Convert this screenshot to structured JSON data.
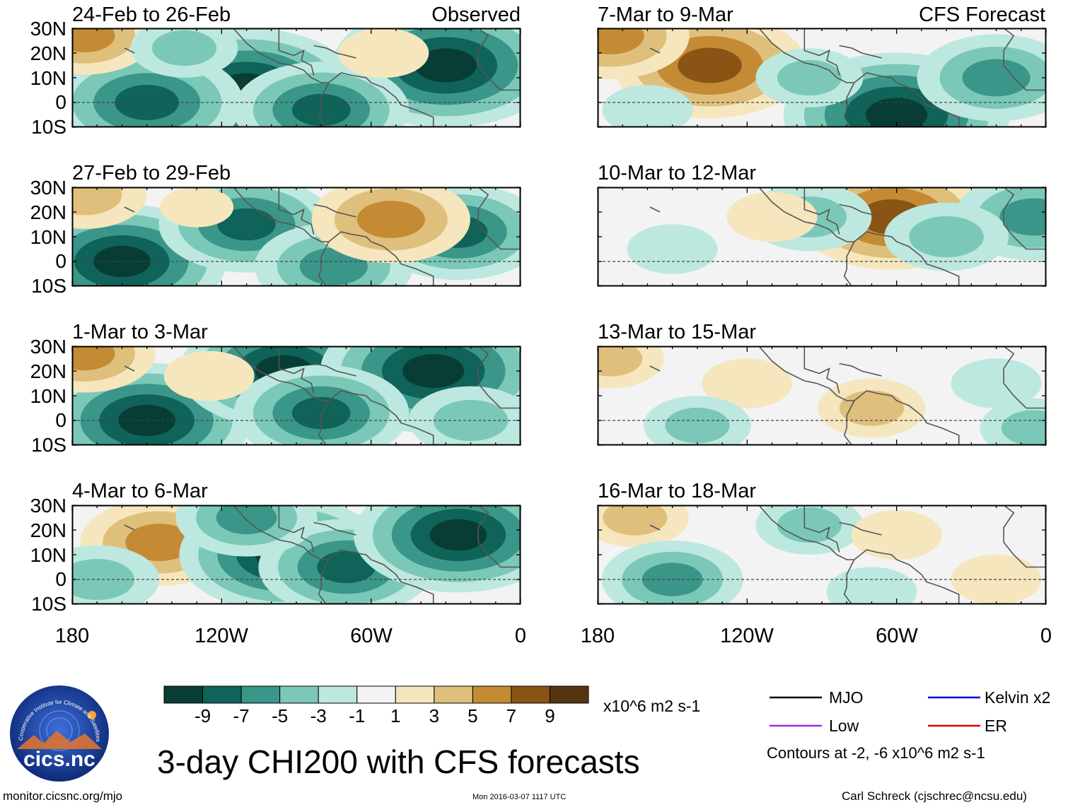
{
  "title": "3-day CHI200 with CFS forecasts",
  "footer": {
    "website": "monitor.cicsnc.org/mjo",
    "timestamp": "Mon 2016-03-07 1117 UTC",
    "author": "Carl Schreck (cjschrec@ncsu.edu)"
  },
  "logo": {
    "text": "cicsnc",
    "ring_text": "Cooperative Institute for Climate and Satellites"
  },
  "axes": {
    "lat_ticks": [
      "30N",
      "20N",
      "10N",
      "0",
      "10S"
    ],
    "lon_ticks": [
      "180",
      "120W",
      "60W",
      "0"
    ]
  },
  "colorbar": {
    "units": "x10^6 m2 s-1",
    "tick_labels": [
      "-9",
      "-7",
      "-5",
      "-3",
      "-1",
      "1",
      "3",
      "5",
      "7",
      "9"
    ],
    "colors": [
      "#083d35",
      "#0f6358",
      "#3a9688",
      "#7bc8b8",
      "#bde8df",
      "#f3f3f3",
      "#f6e6bd",
      "#dfbf7c",
      "#c48a34",
      "#8a5414",
      "#553510"
    ]
  },
  "legend": {
    "items": [
      {
        "label": "MJO",
        "color": "#000000"
      },
      {
        "label": "Kelvin x2",
        "color": "#0000ee"
      },
      {
        "label": "Low",
        "color": "#9a2eee"
      },
      {
        "label": "ER",
        "color": "#dd0000"
      }
    ],
    "note": "Contours at -2, -6 x10^6 m2 s-1"
  },
  "observed_panels": [
    {
      "label": "24-Feb to 26-Feb",
      "tag": "Observed"
    },
    {
      "label": "27-Feb to 29-Feb"
    },
    {
      "label": "1-Mar to 3-Mar"
    },
    {
      "label": "4-Mar to 6-Mar"
    }
  ],
  "forecast_panels": [
    {
      "label": "7-Mar to 9-Mar",
      "tag": "CFS Forecast"
    },
    {
      "label": "10-Mar to 12-Mar"
    },
    {
      "label": "13-Mar to 15-Mar"
    },
    {
      "label": "16-Mar to 18-Mar"
    }
  ],
  "chart_data": {
    "type": "heatmap",
    "variable": "3-day CHI200 anomaly",
    "units": "x10^6 m2 s-1",
    "lon_range": [
      -180,
      0
    ],
    "lat_range": [
      -10,
      30
    ],
    "levels": [
      -9,
      -7,
      -5,
      -3,
      -1,
      1,
      3,
      5,
      7,
      9
    ],
    "panels": [
      {
        "period": "24-Feb to 26-Feb",
        "source": "Observed",
        "blobs": [
          {
            "lon": -110,
            "lat": 5,
            "value": -10
          },
          {
            "lon": -150,
            "lat": 0,
            "value": -8
          },
          {
            "lon": -30,
            "lat": 15,
            "value": -10
          },
          {
            "lon": -80,
            "lat": -3,
            "value": -7
          },
          {
            "lon": -175,
            "lat": 27,
            "value": 5
          },
          {
            "lon": -55,
            "lat": 20,
            "value": 2
          },
          {
            "lon": -135,
            "lat": 22,
            "value": -3
          }
        ]
      },
      {
        "period": "27-Feb to 29-Feb",
        "source": "Observed",
        "blobs": [
          {
            "lon": -160,
            "lat": 0,
            "value": -9
          },
          {
            "lon": -110,
            "lat": 15,
            "value": -7
          },
          {
            "lon": -75,
            "lat": -2,
            "value": -6
          },
          {
            "lon": -25,
            "lat": 12,
            "value": -7
          },
          {
            "lon": -52,
            "lat": 17,
            "value": 6
          },
          {
            "lon": -175,
            "lat": 27,
            "value": 4
          },
          {
            "lon": -130,
            "lat": 22,
            "value": 1
          }
        ]
      },
      {
        "period": "1-Mar to 3-Mar",
        "source": "Observed",
        "blobs": [
          {
            "lon": -150,
            "lat": 0,
            "value": -9
          },
          {
            "lon": -95,
            "lat": 20,
            "value": -9
          },
          {
            "lon": -35,
            "lat": 20,
            "value": -10
          },
          {
            "lon": -80,
            "lat": 3,
            "value": -7
          },
          {
            "lon": -175,
            "lat": 27,
            "value": 5
          },
          {
            "lon": -125,
            "lat": 18,
            "value": 2
          },
          {
            "lon": -20,
            "lat": 0,
            "value": -4
          }
        ]
      },
      {
        "period": "4-Mar to 6-Mar",
        "source": "Observed",
        "blobs": [
          {
            "lon": -145,
            "lat": 15,
            "value": 6
          },
          {
            "lon": -95,
            "lat": 10,
            "value": -9
          },
          {
            "lon": -70,
            "lat": 5,
            "value": -7
          },
          {
            "lon": -25,
            "lat": 18,
            "value": -9
          },
          {
            "lon": -170,
            "lat": 0,
            "value": -4
          },
          {
            "lon": -110,
            "lat": 25,
            "value": -5
          }
        ]
      },
      {
        "period": "7-Mar to 9-Mar",
        "source": "CFS Forecast",
        "blobs": [
          {
            "lon": -135,
            "lat": 15,
            "value": 8
          },
          {
            "lon": -175,
            "lat": 27,
            "value": 6
          },
          {
            "lon": -60,
            "lat": -5,
            "value": -10
          },
          {
            "lon": -20,
            "lat": 10,
            "value": -6
          },
          {
            "lon": -95,
            "lat": 10,
            "value": -3
          },
          {
            "lon": -160,
            "lat": -3,
            "value": -2
          }
        ]
      },
      {
        "period": "10-Mar to 12-Mar",
        "source": "CFS Forecast",
        "blobs": [
          {
            "lon": -62,
            "lat": 18,
            "value": 8
          },
          {
            "lon": -5,
            "lat": 18,
            "value": -6
          },
          {
            "lon": -40,
            "lat": 10,
            "value": -4
          },
          {
            "lon": -95,
            "lat": 18,
            "value": -4
          },
          {
            "lon": -150,
            "lat": 5,
            "value": -2
          },
          {
            "lon": -110,
            "lat": 18,
            "value": 2
          }
        ]
      },
      {
        "period": "13-Mar to 15-Mar",
        "source": "CFS Forecast",
        "blobs": [
          {
            "lon": -120,
            "lat": 15,
            "value": 2
          },
          {
            "lon": -70,
            "lat": 5,
            "value": 3
          },
          {
            "lon": -175,
            "lat": 25,
            "value": 3
          },
          {
            "lon": -140,
            "lat": -2,
            "value": -3
          },
          {
            "lon": -20,
            "lat": 15,
            "value": -2
          },
          {
            "lon": -5,
            "lat": -3,
            "value": -3
          }
        ]
      },
      {
        "period": "16-Mar to 18-Mar",
        "source": "CFS Forecast",
        "blobs": [
          {
            "lon": -165,
            "lat": 25,
            "value": 3
          },
          {
            "lon": -150,
            "lat": 0,
            "value": -5
          },
          {
            "lon": -95,
            "lat": 22,
            "value": -3
          },
          {
            "lon": -60,
            "lat": 18,
            "value": 2
          },
          {
            "lon": -20,
            "lat": 0,
            "value": 2
          },
          {
            "lon": -70,
            "lat": -5,
            "value": -2
          }
        ]
      }
    ]
  }
}
